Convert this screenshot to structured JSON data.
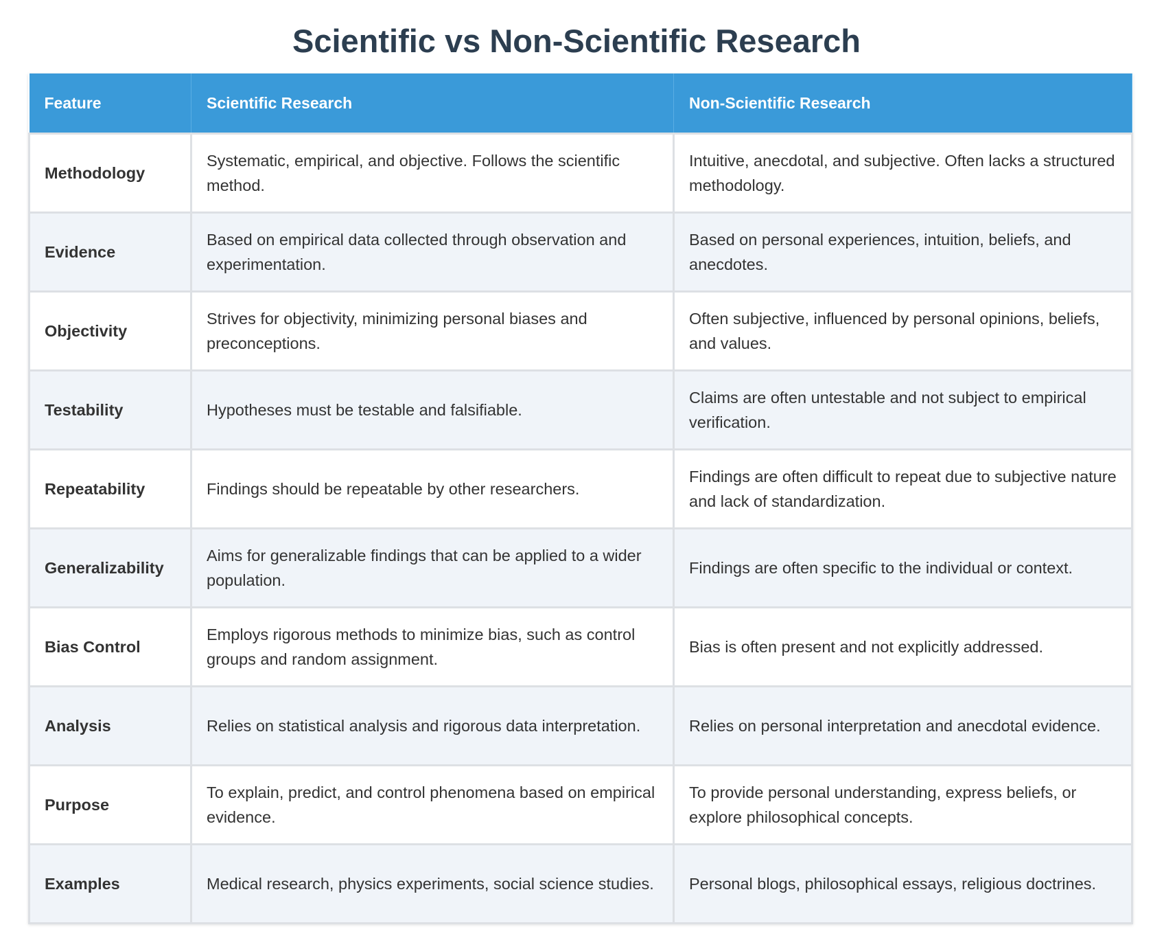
{
  "title": "Scientific vs Non-Scientific Research",
  "table": {
    "headers": [
      "Feature",
      "Scientific Research",
      "Non-Scientific Research"
    ],
    "rows": [
      [
        "Methodology",
        "Systematic, empirical, and objective. Follows the scientific method.",
        "Intuitive, anecdotal, and subjective. Often lacks a structured methodology."
      ],
      [
        "Evidence",
        "Based on empirical data collected through observation and experimentation.",
        "Based on personal experiences, intuition, beliefs, and anecdotes."
      ],
      [
        "Objectivity",
        "Strives for objectivity, minimizing personal biases and preconceptions.",
        "Often subjective, influenced by personal opinions, beliefs, and values."
      ],
      [
        "Testability",
        "Hypotheses must be testable and falsifiable.",
        "Claims are often untestable and not subject to empirical verification."
      ],
      [
        "Repeatability",
        "Findings should be repeatable by other researchers.",
        "Findings are often difficult to repeat due to subjective nature and lack of standardization."
      ],
      [
        "Generalizability",
        "Aims for generalizable findings that can be applied to a wider population.",
        "Findings are often specific to the individual or context."
      ],
      [
        "Bias Control",
        "Employs rigorous methods to minimize bias, such as control groups and random assignment.",
        "Bias is often present and not explicitly addressed."
      ],
      [
        "Analysis",
        "Relies on statistical analysis and rigorous data interpretation.",
        "Relies on personal interpretation and anecdotal evidence."
      ],
      [
        "Purpose",
        "To explain, predict, and control phenomena based on empirical evidence.",
        "To provide personal understanding, express beliefs, or explore philosophical concepts."
      ],
      [
        "Examples",
        "Medical research, physics experiments, social science studies.",
        "Personal blogs, philosophical essays, religious doctrines."
      ]
    ]
  }
}
